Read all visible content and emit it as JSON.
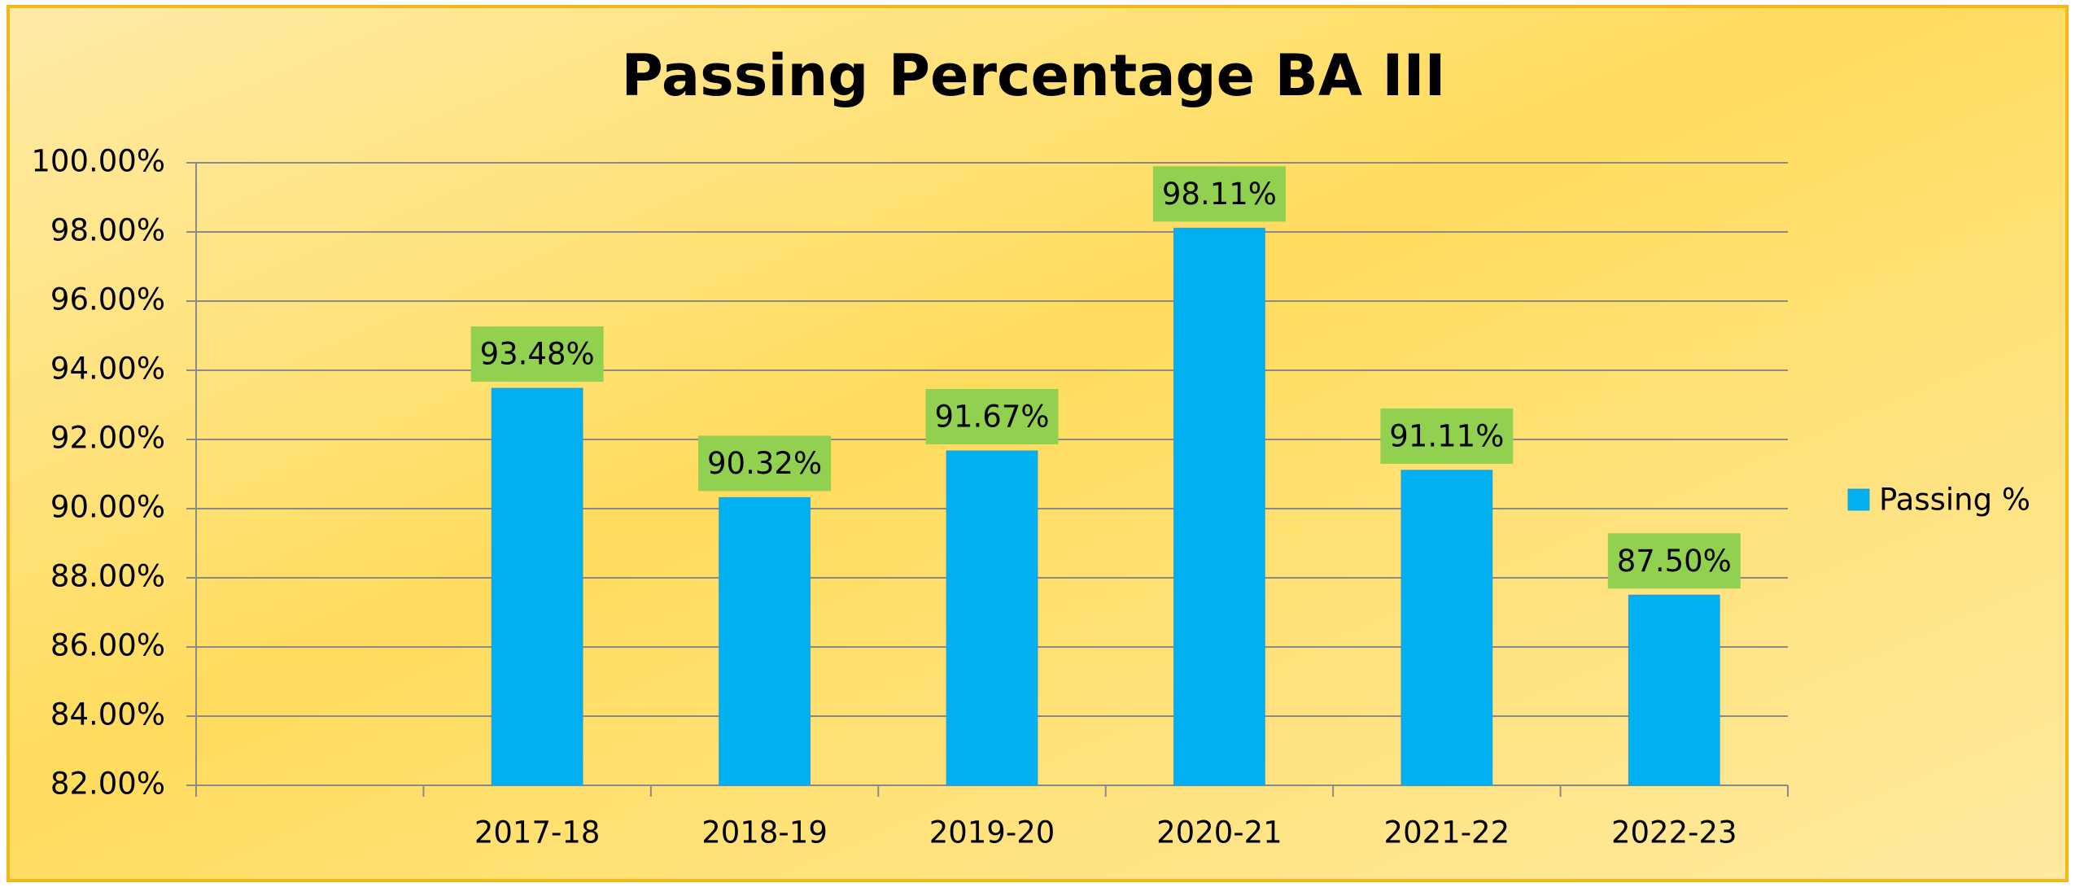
{
  "chart_data": {
    "type": "bar",
    "title": "Passing Percentage BA III",
    "categories": [
      null,
      "2017-18",
      "2018-19",
      "2019-20",
      "2020-21",
      "2021-22",
      "2022-23"
    ],
    "series": [
      {
        "name": "Passing %",
        "color": "#00b0f0",
        "values": [
          null,
          93.48,
          90.32,
          91.67,
          98.11,
          91.11,
          87.5
        ],
        "value_labels": [
          null,
          "93.48%",
          "90.32%",
          "91.67%",
          "98.11%",
          "91.11%",
          "87.50%"
        ]
      }
    ],
    "ylim": [
      82,
      100
    ],
    "yticks": [
      {
        "value": 82,
        "label": "82.00%"
      },
      {
        "value": 84,
        "label": "84.00%"
      },
      {
        "value": 86,
        "label": "86.00%"
      },
      {
        "value": 88,
        "label": "88.00%"
      },
      {
        "value": 90,
        "label": "90.00%"
      },
      {
        "value": 92,
        "label": "92.00%"
      },
      {
        "value": 94,
        "label": "94.00%"
      },
      {
        "value": 96,
        "label": "96.00%"
      },
      {
        "value": 98,
        "label": "98.00%"
      },
      {
        "value": 100,
        "label": "100.00%"
      }
    ],
    "grid": true,
    "legend": "right",
    "label_color": "#92d050"
  }
}
